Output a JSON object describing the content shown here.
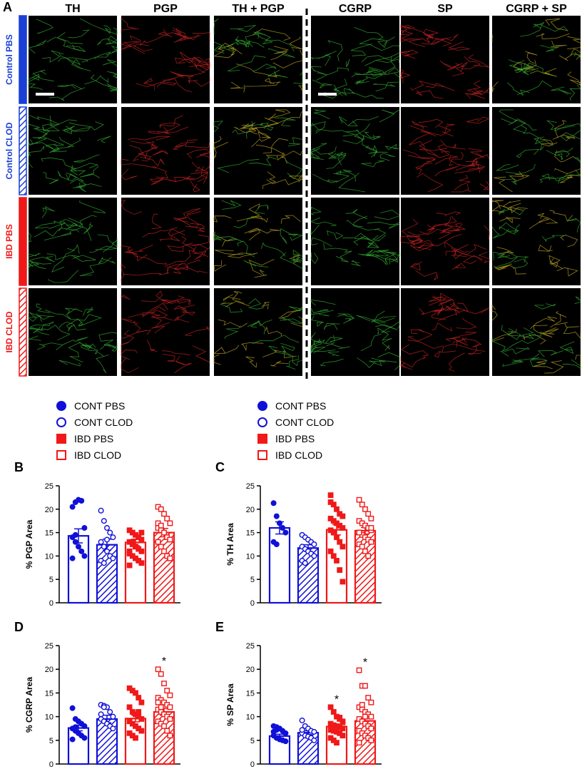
{
  "figure": {
    "panel_a": "A",
    "columns": [
      "TH",
      "PGP",
      "TH + PGP",
      "CGRP",
      "SP",
      "CGRP +  SP"
    ],
    "rows": [
      {
        "label": "Control PBS",
        "color": "#1a3fd6",
        "hatched": false
      },
      {
        "label": "Control CLOD",
        "color": "#1a3fd6",
        "hatched": true
      },
      {
        "label": "IBD PBS",
        "color": "#f01818",
        "hatched": false
      },
      {
        "label": "IBD CLOD",
        "color": "#f01818",
        "hatched": true
      }
    ],
    "charts": [
      {
        "type": "bar",
        "panel": "B",
        "ylabel": "% PGP  Area",
        "ylim": [
          0,
          25
        ],
        "yticks": [
          0,
          5,
          10,
          15,
          20,
          25
        ],
        "series": [
          {
            "name": "CONT PBS",
            "color": "#1010d8",
            "hatched": false,
            "marker": "circle",
            "filled": true,
            "value": 14.3,
            "error": 1.5,
            "points": [
              20.5,
              21.5,
              22,
              21.8,
              16,
              14,
              13,
              12,
              11,
              10,
              9.5,
              14.5
            ]
          },
          {
            "name": "CONT CLOD",
            "color": "#1010d8",
            "hatched": true,
            "marker": "circle",
            "filled": false,
            "value": 12.4,
            "error": 1.2,
            "points": [
              19.7,
              17.5,
              16,
              15,
              14,
              13,
              12,
              11,
              10,
              9.5,
              9,
              8.5,
              13.5
            ]
          },
          {
            "name": "IBD PBS",
            "color": "#f01818",
            "hatched": false,
            "marker": "square",
            "filled": true,
            "value": 12.9,
            "error": 0.7,
            "points": [
              15.5,
              15,
              14.5,
              14,
              13.5,
              13,
              12.5,
              12,
              11.5,
              11,
              10.5,
              10,
              9.5,
              9,
              8.5,
              8,
              13,
              12,
              14,
              15,
              11
            ]
          },
          {
            "name": "IBD CLOD",
            "color": "#f01818",
            "hatched": true,
            "marker": "square",
            "filled": false,
            "value": 15.0,
            "error": 0.9,
            "points": [
              20.5,
              20,
              19,
              18,
              17,
              16,
              15.5,
              15,
              14,
              13.5,
              13,
              12,
              11,
              10,
              9.5,
              17,
              16.5
            ]
          }
        ]
      },
      {
        "type": "bar",
        "panel": "C",
        "ylabel": "% TH  Area",
        "ylim": [
          0,
          25
        ],
        "yticks": [
          0,
          5,
          10,
          15,
          20,
          25
        ],
        "series": [
          {
            "name": "CONT PBS",
            "color": "#1010d8",
            "hatched": false,
            "marker": "circle",
            "filled": true,
            "value": 16.0,
            "error": 1.3,
            "points": [
              21.3,
              18.5,
              17,
              16,
              15,
              13,
              12.5
            ]
          },
          {
            "name": "CONT CLOD",
            "color": "#1010d8",
            "hatched": true,
            "marker": "circle",
            "filled": false,
            "value": 11.7,
            "error": 0.7,
            "points": [
              14.5,
              14,
              13.5,
              13,
              12.5,
              12,
              11.5,
              11,
              10.5,
              10,
              9,
              8.5
            ]
          },
          {
            "name": "IBD PBS",
            "color": "#f01818",
            "hatched": false,
            "marker": "square",
            "filled": true,
            "value": 15.6,
            "error": 1.1,
            "points": [
              23,
              21,
              20,
              19,
              18.5,
              18,
              17.5,
              17,
              16.5,
              16,
              15.5,
              15,
              14,
              13,
              12,
              11,
              10,
              9,
              7,
              4.5,
              21.5
            ]
          },
          {
            "name": "IBD CLOD",
            "color": "#f01818",
            "hatched": true,
            "marker": "square",
            "filled": false,
            "value": 15.4,
            "error": 0.7,
            "points": [
              22,
              21,
              20,
              19,
              18,
              17.5,
              17,
              16.5,
              16,
              15.5,
              15,
              14.5,
              14,
              13.5,
              13,
              12.5,
              12,
              11,
              10,
              16,
              15
            ]
          }
        ]
      },
      {
        "type": "bar",
        "panel": "D",
        "ylabel": "% CGRP Area",
        "ylim": [
          0,
          25
        ],
        "yticks": [
          0,
          5,
          10,
          15,
          20,
          25
        ],
        "series": [
          {
            "color": "#1010d8",
            "hatched": false,
            "marker": "circle",
            "filled": true,
            "value": 7.6,
            "error": 0.6,
            "points": [
              11.8,
              9.5,
              9,
              8.5,
              8,
              7.5,
              7,
              6.5,
              6,
              5.5,
              5.2,
              7.8
            ]
          },
          {
            "color": "#1010d8",
            "hatched": true,
            "marker": "circle",
            "filled": false,
            "value": 9.5,
            "error": 0.8,
            "points": [
              12.5,
              12.3,
              12,
              11,
              10,
              9.5,
              9,
              8.5,
              8,
              7.5,
              10.5,
              12
            ]
          },
          {
            "color": "#f01818",
            "hatched": false,
            "marker": "square",
            "filled": true,
            "value": 9.6,
            "error": 0.7,
            "points": [
              16,
              15.5,
              15,
              14,
              13,
              12,
              11,
              10.5,
              10,
              9.5,
              9,
              8.5,
              8,
              7.5,
              7,
              6.5,
              6,
              5.5,
              11
            ]
          },
          {
            "color": "#f01818",
            "hatched": true,
            "marker": "square",
            "filled": false,
            "value": 11.0,
            "error": 0.7,
            "label": "*",
            "points": [
              20,
              19,
              17,
              15.5,
              14.5,
              14,
              13.5,
              13,
              12.5,
              12,
              11.5,
              11,
              10.5,
              10,
              9.5,
              9,
              8.5,
              8,
              7,
              6,
              13,
              12
            ]
          }
        ]
      },
      {
        "type": "bar",
        "panel": "E",
        "ylabel": "% SP  Area",
        "ylim": [
          0,
          25
        ],
        "yticks": [
          0,
          5,
          10,
          15,
          20,
          25
        ],
        "series": [
          {
            "color": "#1010d8",
            "hatched": false,
            "marker": "circle",
            "filled": true,
            "value": 5.9,
            "error": 0.4,
            "points": [
              8,
              7.8,
              7.5,
              7,
              6.5,
              6,
              5.5,
              5.2,
              5,
              4.8,
              6.8,
              7.2
            ]
          },
          {
            "color": "#1010d8",
            "hatched": true,
            "marker": "circle",
            "filled": false,
            "value": 6.6,
            "error": 0.4,
            "points": [
              9.2,
              8,
              7.5,
              7,
              6.8,
              6.5,
              6,
              5.8,
              5.5,
              5,
              7.2
            ]
          },
          {
            "color": "#f01818",
            "hatched": false,
            "marker": "square",
            "filled": true,
            "value": 7.9,
            "error": 0.4,
            "label": "*",
            "points": [
              12,
              11,
              10,
              9.5,
              9,
              8.5,
              8.2,
              8,
              7.8,
              7.5,
              7.2,
              7,
              6.8,
              6.5,
              6,
              5.5,
              5,
              4.5,
              9.8,
              8.8
            ]
          },
          {
            "color": "#f01818",
            "hatched": true,
            "marker": "square",
            "filled": false,
            "value": 9.1,
            "error": 0.6,
            "label": "*",
            "points": [
              19.8,
              16.5,
              16.5,
              14,
              13,
              12,
              11.5,
              11,
              10.5,
              10,
              9.5,
              9,
              8.5,
              8,
              7.5,
              7,
              6.5,
              6,
              5.5,
              5,
              4.5,
              12.5,
              10
            ]
          }
        ]
      }
    ]
  }
}
